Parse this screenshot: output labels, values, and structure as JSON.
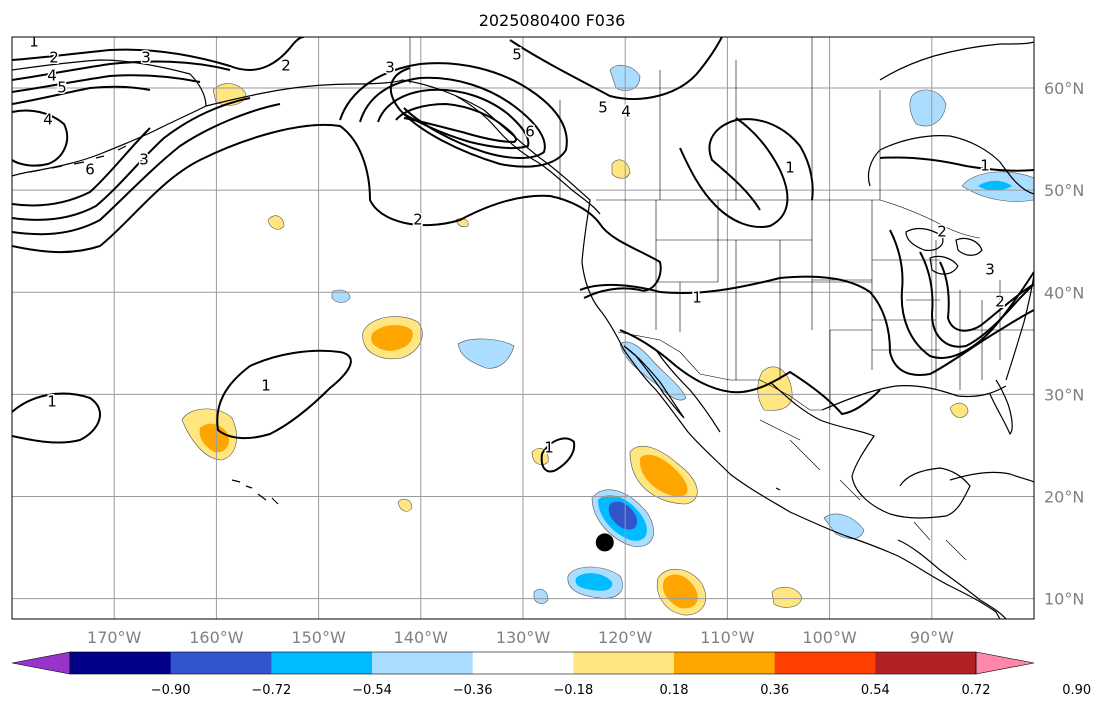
{
  "title": "2025080400 F036",
  "colors": {
    "ocean": "#ffffff",
    "coast": "#000000",
    "grid": "#9a9a9a",
    "contour": "#000000",
    "dot": "#000000"
  },
  "axes": {
    "lon_range": [
      -180,
      -80
    ],
    "lat_range": [
      8,
      65
    ],
    "x_ticks": [
      {
        "lon": -170,
        "label": "170°W"
      },
      {
        "lon": -160,
        "label": "160°W"
      },
      {
        "lon": -150,
        "label": "150°W"
      },
      {
        "lon": -140,
        "label": "140°W"
      },
      {
        "lon": -130,
        "label": "130°W"
      },
      {
        "lon": -120,
        "label": "120°W"
      },
      {
        "lon": -110,
        "label": "110°W"
      },
      {
        "lon": -100,
        "label": "100°W"
      },
      {
        "lon": -90,
        "label": "90°W"
      }
    ],
    "y_ticks": [
      {
        "lat": 10,
        "label": "10°N"
      },
      {
        "lat": 20,
        "label": "20°N"
      },
      {
        "lat": 30,
        "label": "30°N"
      },
      {
        "lat": 40,
        "label": "40°N"
      },
      {
        "lat": 50,
        "label": "50°N"
      },
      {
        "lat": 60,
        "label": "60°N"
      }
    ]
  },
  "colorbar": {
    "colors": [
      "#9933cc",
      "#000088",
      "#3355cc",
      "#00bbff",
      "#aaddff",
      "#ffffff",
      "#ffe680",
      "#ffa500",
      "#ff4000",
      "#b22222",
      "#ff88aa"
    ],
    "tick_labels": [
      "−0.90",
      "−0.72",
      "−0.54",
      "−0.36",
      "−0.18",
      "0.18",
      "0.36",
      "0.54",
      "0.72",
      "0.90"
    ],
    "extend": "both"
  },
  "map_features": {
    "marker": {
      "lon": -122.0,
      "lat": 15.5,
      "label": "storm center dot"
    }
  },
  "shaded_anomalies": [
    {
      "lon": -142.5,
      "lat": 35.5,
      "value": 0.36
    },
    {
      "lon": -159.5,
      "lat": 25.5,
      "value": 0.36
    },
    {
      "lon": -116.0,
      "lat": 22.0,
      "value": 0.36
    },
    {
      "lon": -113.5,
      "lat": 10.5,
      "value": 0.36
    },
    {
      "lon": -134.0,
      "lat": 34.5,
      "value": -0.18
    },
    {
      "lon": -120.5,
      "lat": 18.0,
      "value": -0.72
    },
    {
      "lon": -121.5,
      "lat": 12.0,
      "value": -0.36
    },
    {
      "lon": -84.5,
      "lat": 50.5,
      "value": -0.36
    },
    {
      "lon": -87.0,
      "lat": 60.0,
      "value": -0.18
    },
    {
      "lon": -108.0,
      "lat": 31.0,
      "value": 0.18
    },
    {
      "lon": -156.5,
      "lat": 59.5,
      "value": 0.18
    },
    {
      "lon": -123.5,
      "lat": 52.0,
      "value": 0.18
    },
    {
      "lon": -119.5,
      "lat": 33.5,
      "value": -0.18
    },
    {
      "lon": -102.0,
      "lat": 19.5,
      "value": -0.18
    },
    {
      "lon": -126.5,
      "lat": 24.0,
      "value": 0.18
    },
    {
      "lon": -105.0,
      "lat": 10.0,
      "value": 0.18
    }
  ],
  "contour_labels": [
    "1",
    "2",
    "3",
    "4",
    "5",
    "6"
  ]
}
